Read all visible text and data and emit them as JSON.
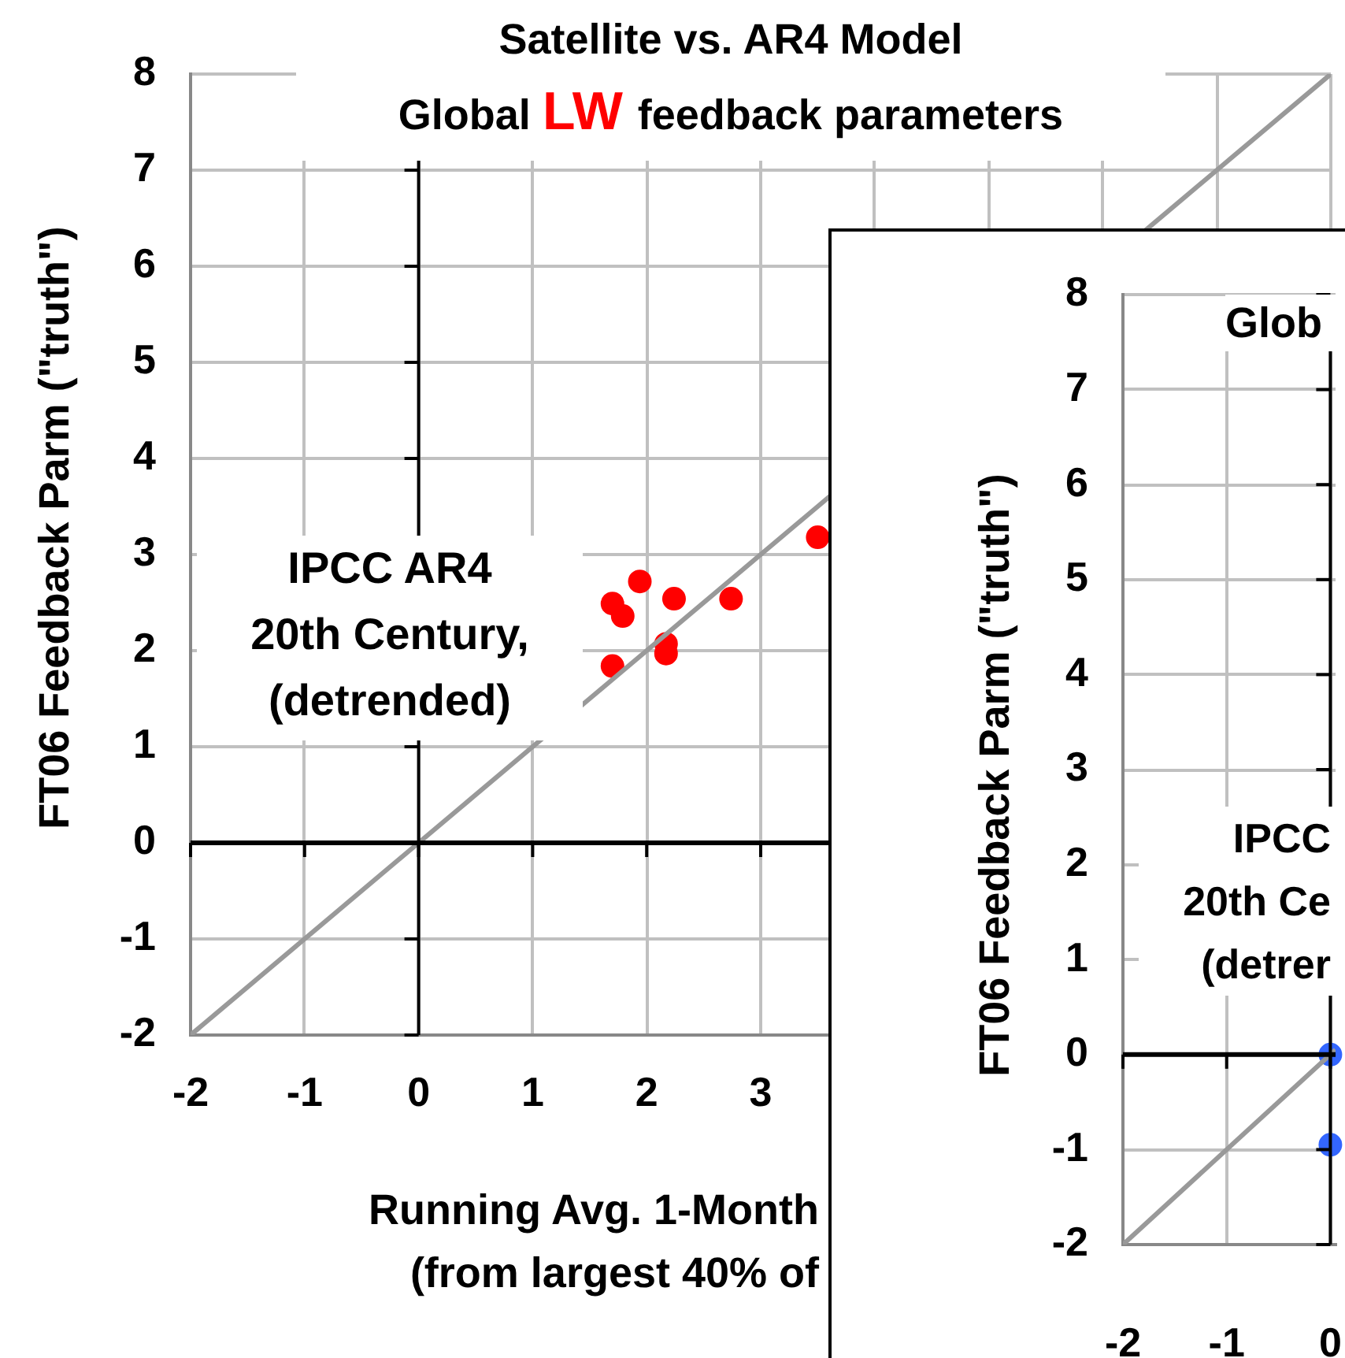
{
  "chart_data": [
    {
      "type": "scatter",
      "title": "Satellite vs. AR4 Model",
      "subtitle": "Global LW feedback parameters",
      "xlabel": "Running Avg. 1-Month\n(from largest 40% of",
      "ylabel": "FT06 Feedback Parm (\"truth\")",
      "annotations": [
        "IPCC AR4\n20th Century,\n(detrended)"
      ],
      "xlim": [
        -2,
        8
      ],
      "ylim": [
        -2,
        8
      ],
      "xticks": [
        -2,
        -1,
        0,
        1,
        2,
        3,
        {
          "value": 4,
          "label": null
        },
        {
          "value": 5,
          "label": null
        },
        {
          "value": 6,
          "label": null
        },
        {
          "value": 7,
          "label": null
        },
        {
          "value": 8,
          "label": null
        }
      ],
      "yticks": [
        -2,
        -1,
        0,
        1,
        2,
        3,
        4,
        5,
        6,
        7,
        8
      ],
      "grid": true,
      "series": [
        {
          "type": "line",
          "marker": "none",
          "color": "#999999",
          "x": [
            -2,
            8
          ],
          "values": [
            -2,
            8
          ]
        },
        {
          "type": "scatter",
          "marker": "circle",
          "color": "#ff0000",
          "x": [
            3.5,
            1.94,
            1.7,
            1.79,
            2.24,
            2.74,
            2.17,
            2.17,
            1.7
          ],
          "values": [
            3.18,
            2.72,
            2.49,
            2.36,
            2.54,
            2.54,
            2.07,
            1.97,
            1.84
          ]
        }
      ]
    },
    {
      "type": "scatter",
      "subtitle": "Glob",
      "ylabel": "FT06 Feedback Parm (\"truth\")",
      "annotations": [
        "IPCC\n20th Ce\n(detrer"
      ],
      "xlim": [
        -2,
        0.05
      ],
      "ylim": [
        -2,
        8
      ],
      "xticks": [
        -2,
        -1,
        0
      ],
      "yticks": [
        -2,
        -1,
        0,
        1,
        2,
        3,
        4,
        5,
        6,
        7,
        8
      ],
      "grid": true,
      "series": [
        {
          "type": "line",
          "marker": "none",
          "color": "#999999",
          "x": [
            -2,
            0.05
          ],
          "values": [
            -2,
            0.05
          ]
        },
        {
          "type": "scatter",
          "marker": "circle",
          "color": "#3366ff",
          "x": [
            0,
            0
          ],
          "values": [
            0,
            -0.95
          ]
        }
      ]
    }
  ]
}
